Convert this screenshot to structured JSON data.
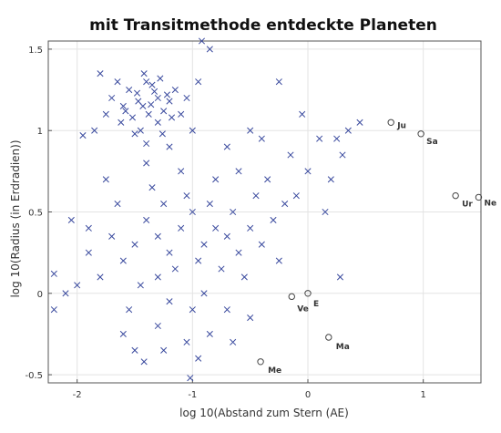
{
  "chart_data": {
    "type": "scatter",
    "title": "mit Transitmethode entdeckte Planeten",
    "xlabel": "log 10(Abstand zum Stern (AE)",
    "ylabel": "log 10(Radius (in Erdradien))",
    "xlim": [
      -2.25,
      1.5
    ],
    "ylim": [
      -0.55,
      1.55
    ],
    "xticks": [
      -2,
      -1,
      0,
      1
    ],
    "yticks": [
      -0.5,
      0,
      0.5,
      1,
      1.5
    ],
    "xtick_labels": [
      "-2",
      "-1",
      "0",
      "1"
    ],
    "ytick_labels": [
      "-0.5",
      "0",
      "0.5",
      "1",
      "1.5"
    ],
    "grid": true,
    "series": [
      {
        "marker": "x",
        "color": "#3a4a9e",
        "note_density": "two dense clusters",
        "points": [
          [
            -1.43,
            1.15
          ],
          [
            -1.3,
            1.2
          ],
          [
            -1.38,
            1.1
          ],
          [
            -1.48,
            1.23
          ],
          [
            -1.25,
            1.12
          ],
          [
            -1.52,
            1.08
          ],
          [
            -1.35,
            1.28
          ],
          [
            -1.2,
            1.18
          ],
          [
            -1.6,
            1.15
          ],
          [
            -1.4,
            1.3
          ],
          [
            -1.3,
            1.05
          ],
          [
            -1.45,
            1.0
          ],
          [
            -1.55,
            1.25
          ],
          [
            -1.15,
            1.25
          ],
          [
            -1.62,
            1.05
          ],
          [
            -1.7,
            1.2
          ],
          [
            -1.42,
            1.35
          ],
          [
            -1.28,
            1.32
          ],
          [
            -1.18,
            1.08
          ],
          [
            -1.5,
            0.98
          ],
          [
            -1.36,
            1.16
          ],
          [
            -1.22,
            1.22
          ],
          [
            -1.47,
            1.18
          ],
          [
            -1.33,
            1.24
          ],
          [
            -1.58,
            1.12
          ],
          [
            -1.1,
            1.1
          ],
          [
            -1.75,
            1.1
          ],
          [
            -1.4,
            0.92
          ],
          [
            -1.26,
            0.98
          ],
          [
            -1.65,
            1.3
          ],
          [
            -1.05,
            1.2
          ],
          [
            -1.8,
            1.35
          ],
          [
            -1.0,
            1.0
          ],
          [
            -0.95,
            1.3
          ],
          [
            -1.85,
            1.0
          ],
          [
            -1.3,
            0.35
          ],
          [
            -1.1,
            0.4
          ],
          [
            -0.9,
            0.3
          ],
          [
            -1.2,
            0.25
          ],
          [
            -1.0,
            0.5
          ],
          [
            -1.4,
            0.45
          ],
          [
            -0.8,
            0.4
          ],
          [
            -1.15,
            0.15
          ],
          [
            -0.95,
            0.2
          ],
          [
            -1.3,
            0.1
          ],
          [
            -0.7,
            0.35
          ],
          [
            -1.5,
            0.3
          ],
          [
            -1.05,
            0.6
          ],
          [
            -0.85,
            0.55
          ],
          [
            -1.25,
            0.55
          ],
          [
            -0.6,
            0.25
          ],
          [
            -1.6,
            0.2
          ],
          [
            -0.75,
            0.15
          ],
          [
            -1.35,
            0.65
          ],
          [
            -0.65,
            0.5
          ],
          [
            -1.45,
            0.05
          ],
          [
            -0.5,
            0.4
          ],
          [
            -1.7,
            0.35
          ],
          [
            -0.9,
            0.0
          ],
          [
            -1.2,
            -0.05
          ],
          [
            -0.55,
            0.1
          ],
          [
            -1.0,
            -0.1
          ],
          [
            -0.4,
            0.3
          ],
          [
            -1.55,
            -0.1
          ],
          [
            -0.7,
            -0.1
          ],
          [
            -1.8,
            0.1
          ],
          [
            -0.3,
            0.45
          ],
          [
            -1.1,
            0.75
          ],
          [
            -0.8,
            0.7
          ],
          [
            -1.4,
            0.8
          ],
          [
            -0.45,
            0.6
          ],
          [
            -1.65,
            0.55
          ],
          [
            -0.25,
            0.2
          ],
          [
            -1.9,
            0.25
          ],
          [
            -0.6,
            0.75
          ],
          [
            -1.3,
            -0.2
          ],
          [
            -0.85,
            -0.25
          ],
          [
            -1.05,
            -0.3
          ],
          [
            -0.5,
            -0.15
          ],
          [
            -1.6,
            -0.25
          ],
          [
            -0.35,
            0.7
          ],
          [
            -2.0,
            0.05
          ],
          [
            -0.2,
            0.55
          ],
          [
            -1.75,
            0.7
          ],
          [
            -0.15,
            0.85
          ],
          [
            -1.2,
            0.9
          ],
          [
            -0.7,
            0.9
          ],
          [
            -0.4,
            0.95
          ],
          [
            -0.1,
            0.6
          ],
          [
            -2.1,
            0.0
          ],
          [
            -0.95,
            -0.4
          ],
          [
            -1.25,
            -0.35
          ],
          [
            -1.5,
            -0.35
          ],
          [
            -0.65,
            -0.3
          ],
          [
            -2.2,
            -0.1
          ],
          [
            -1.02,
            -0.52
          ],
          [
            -0.92,
            1.55
          ],
          [
            -0.85,
            1.5
          ],
          [
            -0.25,
            1.3
          ],
          [
            0.1,
            0.95
          ],
          [
            0.3,
            0.85
          ],
          [
            0.45,
            1.05
          ],
          [
            0.2,
            0.7
          ],
          [
            0.35,
            1.0
          ],
          [
            0.15,
            0.5
          ],
          [
            0.28,
            0.1
          ],
          [
            0.0,
            0.75
          ],
          [
            -0.05,
            1.1
          ],
          [
            0.25,
            0.95
          ],
          [
            -0.5,
            1.0
          ],
          [
            -2.05,
            0.45
          ],
          [
            -1.95,
            0.97
          ],
          [
            -2.2,
            0.12
          ],
          [
            -1.42,
            -0.42
          ],
          [
            -1.9,
            0.4
          ]
        ]
      }
    ],
    "annotations": [
      {
        "label": "Me",
        "x": -0.41,
        "y": -0.42,
        "marker": "o"
      },
      {
        "label": "Ve",
        "x": -0.14,
        "y": -0.02,
        "marker": "o"
      },
      {
        "label": "E",
        "x": 0.0,
        "y": 0.0,
        "marker": "o"
      },
      {
        "label": "Ma",
        "x": 0.18,
        "y": -0.27,
        "marker": "o"
      },
      {
        "label": "Ju",
        "x": 0.72,
        "y": 1.05,
        "marker": "o"
      },
      {
        "label": "Sa",
        "x": 0.98,
        "y": 0.98,
        "marker": "o"
      },
      {
        "label": "Ur",
        "x": 1.28,
        "y": 0.6,
        "marker": "o"
      },
      {
        "label": "Ne",
        "x": 1.48,
        "y": 0.59,
        "marker": "o"
      }
    ]
  }
}
